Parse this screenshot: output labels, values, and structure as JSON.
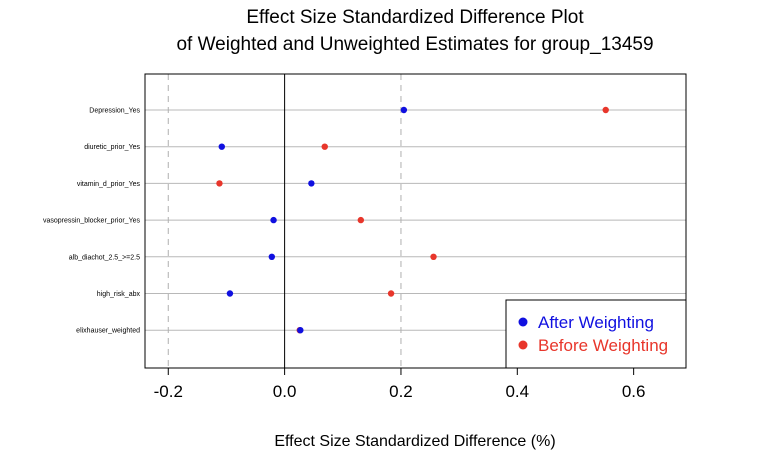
{
  "chart_data": {
    "type": "scatter",
    "title_lines": [
      "Effect Size Standardized Difference Plot",
      "of Weighted and Unweighted Estimates for group_13459"
    ],
    "xlabel": "Effect Size Standardized Difference (%)",
    "xlim": [
      -0.24,
      0.69
    ],
    "xticks": [
      "-0.2",
      "0.0",
      "0.2",
      "0.4",
      "0.6"
    ],
    "xtick_values": [
      -0.2,
      0.0,
      0.2,
      0.4,
      0.6
    ],
    "ref_lines_dashed": [
      -0.2,
      0.2
    ],
    "ref_line_solid": 0.0,
    "grid": "horizontal",
    "legend_placement": "bottom-right",
    "categories": [
      "Depression_Yes",
      "diuretic_prior_Yes",
      "vitamin_d_prior_Yes",
      "vasopressin_blocker_prior_Yes",
      "alb_diachot_2.5_>=2.5",
      "high_risk_abx",
      "elixhauser_weighted"
    ],
    "series": [
      {
        "name": "After Weighting",
        "color": "#1010e0",
        "values": [
          0.205,
          -0.108,
          0.046,
          -0.019,
          -0.022,
          -0.094,
          0.027
        ]
      },
      {
        "name": "Before Weighting",
        "color": "#e8362b",
        "values": [
          0.552,
          0.069,
          -0.112,
          0.131,
          0.256,
          0.183,
          0.026
        ]
      }
    ]
  }
}
